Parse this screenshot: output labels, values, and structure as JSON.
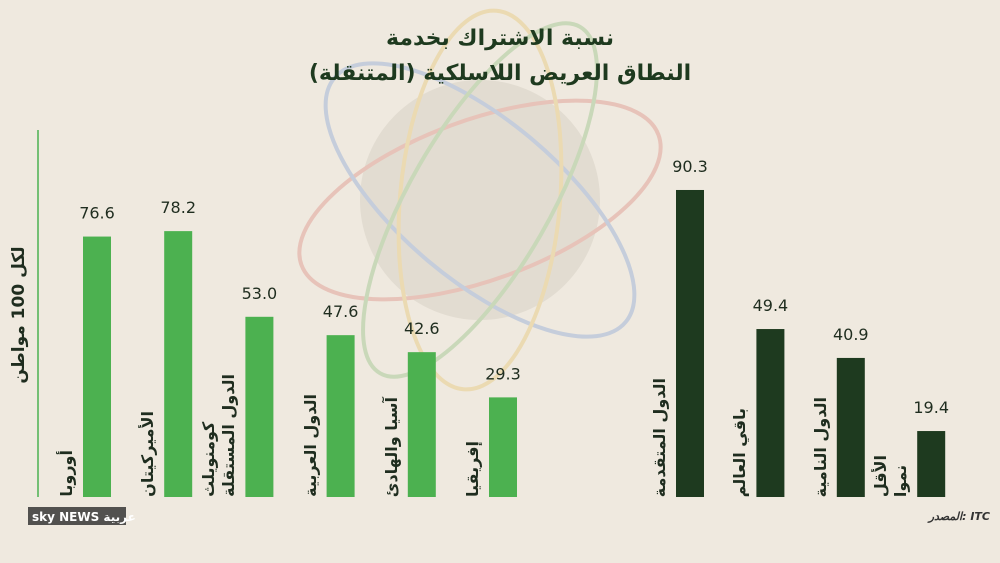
{
  "chart_data": {
    "type": "bar",
    "title": "نسبة الاشتراك بخدمة",
    "subtitle": "النطاق العريض اللاسلكية (المتنقلة)",
    "y_label": "لكل 100 مواطن",
    "source": "المصدر: ITC",
    "logo": "sky NEWS عربية",
    "categories": [
      "أوروبا",
      "الأميركيتان",
      "كومنويلث\nالدول المستقلة",
      "الدول العربية",
      "آسيا والهادئ",
      "إفريقيا",
      "الدول المتقدمة",
      "باقي العالم",
      "الدول النامية",
      "الأقل\nنموا"
    ],
    "values": [
      76.6,
      78.2,
      53.0,
      47.6,
      42.6,
      29.3,
      90.3,
      49.4,
      40.9,
      19.4
    ],
    "value_labels": [
      "76.6",
      "78.2",
      "53.0",
      "47.6",
      "42.6",
      "29.3",
      "90.3",
      "49.4",
      "40.9",
      "19.4"
    ],
    "colors": [
      "#4cb150",
      "#4cb150",
      "#4cb150",
      "#4cb150",
      "#4cb150",
      "#4cb150",
      "#1e3a1f",
      "#1e3a1f",
      "#1e3a1f",
      "#1e3a1f"
    ],
    "ylim": [
      0,
      100
    ]
  }
}
